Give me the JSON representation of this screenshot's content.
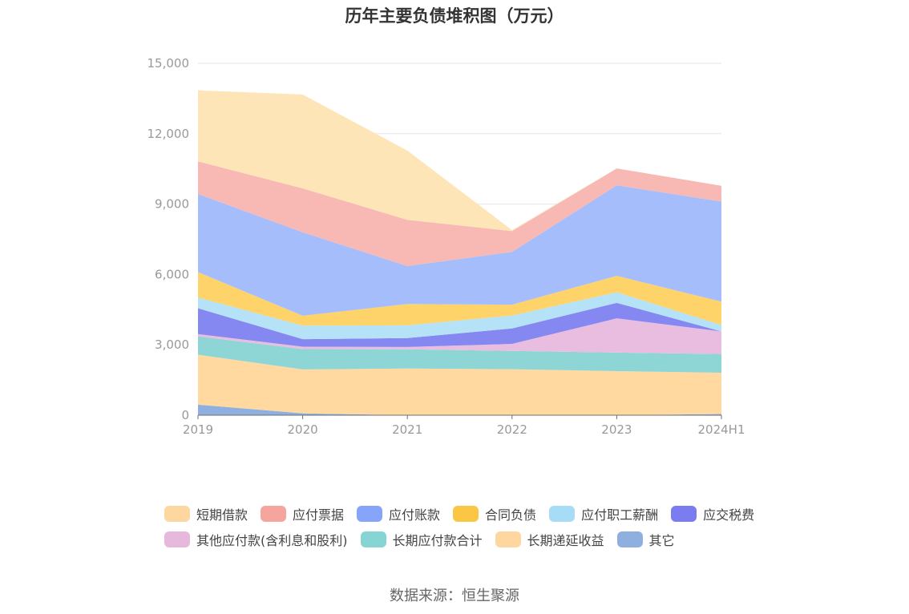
{
  "title": "历年主要负债堆积图（万元）",
  "source": "数据来源：恒生聚源",
  "chart_data": {
    "type": "area",
    "stacked": true,
    "x": [
      "2019",
      "2020",
      "2021",
      "2022",
      "2023",
      "2024H1"
    ],
    "ylim": [
      0,
      15000
    ],
    "yticks": [
      0,
      3000,
      6000,
      9000,
      12000,
      15000
    ],
    "ytick_labels": [
      "0",
      "3,000",
      "6,000",
      "9,000",
      "12,000",
      "15,000"
    ],
    "grid": true,
    "legend_position": "bottom",
    "series": [
      {
        "name": "其它",
        "color": "#8fb0de",
        "values": [
          450,
          80,
          0,
          0,
          0,
          50
        ]
      },
      {
        "name": "长期递延收益",
        "color": "#ffd9a0",
        "values": [
          2130,
          1870,
          1990,
          1960,
          1880,
          1760
        ]
      },
      {
        "name": "长期应付款合计",
        "color": "#8ed6d6",
        "values": [
          780,
          870,
          820,
          780,
          790,
          800
        ]
      },
      {
        "name": "其他应付款(含利息和股利)",
        "color": "#e8bde0",
        "values": [
          100,
          100,
          100,
          300,
          1460,
          960
        ]
      },
      {
        "name": "应交税费",
        "color": "#8488f0",
        "values": [
          1100,
          320,
          380,
          660,
          660,
          0
        ]
      },
      {
        "name": "应付职工薪酬",
        "color": "#b5e2f7",
        "values": [
          460,
          580,
          540,
          550,
          450,
          280
        ]
      },
      {
        "name": "合同负债",
        "color": "#fdd36a",
        "values": [
          1080,
          420,
          910,
          460,
          700,
          990
        ]
      },
      {
        "name": "应付账款",
        "color": "#a6bdfb",
        "values": [
          3330,
          3560,
          1620,
          2250,
          3860,
          4270
        ]
      },
      {
        "name": "应付票据",
        "color": "#f8b9b5",
        "values": [
          1390,
          1870,
          1970,
          890,
          720,
          670
        ]
      },
      {
        "name": "短期借款",
        "color": "#fde5b8",
        "values": [
          3030,
          4000,
          2950,
          40,
          0,
          0
        ]
      }
    ],
    "legend_order": [
      "短期借款",
      "应付票据",
      "应付账款",
      "合同负债",
      "应付职工薪酬",
      "应交税费",
      "其他应付款(含利息和股利)",
      "长期应付款合计",
      "长期递延收益",
      "其它"
    ],
    "legend_colors": {
      "短期借款": "#fdd6a0",
      "应付票据": "#f5a49e",
      "应付账款": "#86a5fa",
      "合同负债": "#fbc644",
      "应付职工薪酬": "#a7dcf6",
      "应交税费": "#7a7cef",
      "其他应付款(含利息和股利)": "#e6b8dc",
      "长期应付款合计": "#86d4d4",
      "长期递延收益": "#fdd6a0",
      "其它": "#8fb0de"
    }
  }
}
